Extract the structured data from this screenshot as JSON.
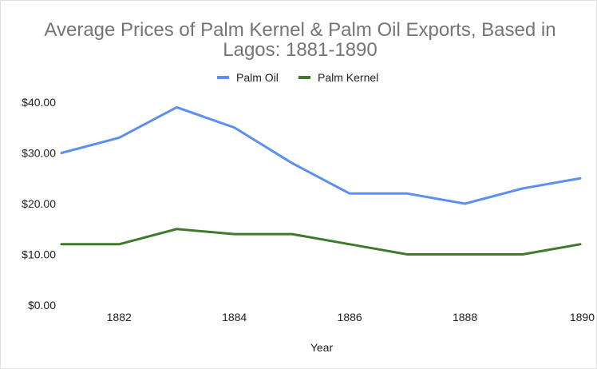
{
  "chart_data": {
    "type": "line",
    "title_line1": "Average Prices of Palm Kernel & Palm Oil Exports, Based in",
    "title_line2": "Lagos: 1881-1890",
    "xlabel": "Year",
    "ylabel": "",
    "x": [
      1881,
      1882,
      1883,
      1884,
      1885,
      1886,
      1887,
      1888,
      1889,
      1890
    ],
    "xlim": [
      1881,
      1890
    ],
    "x_ticks": [
      "1882",
      "1884",
      "1886",
      "1888",
      "1890"
    ],
    "ylim": [
      0,
      40
    ],
    "y_ticks": [
      "$0.00",
      "$10.00",
      "$20.00",
      "$30.00",
      "$40.00"
    ],
    "grid": false,
    "legend_position": "top",
    "series": [
      {
        "name": "Palm Oil",
        "color": "#5b8ff0",
        "values": [
          30,
          33,
          39,
          35,
          28,
          22,
          22,
          20,
          23,
          25
        ]
      },
      {
        "name": "Palm Kernel",
        "color": "#3f7a2a",
        "values": [
          12,
          12,
          15,
          14,
          14,
          12,
          10,
          10,
          10,
          12
        ]
      }
    ]
  }
}
